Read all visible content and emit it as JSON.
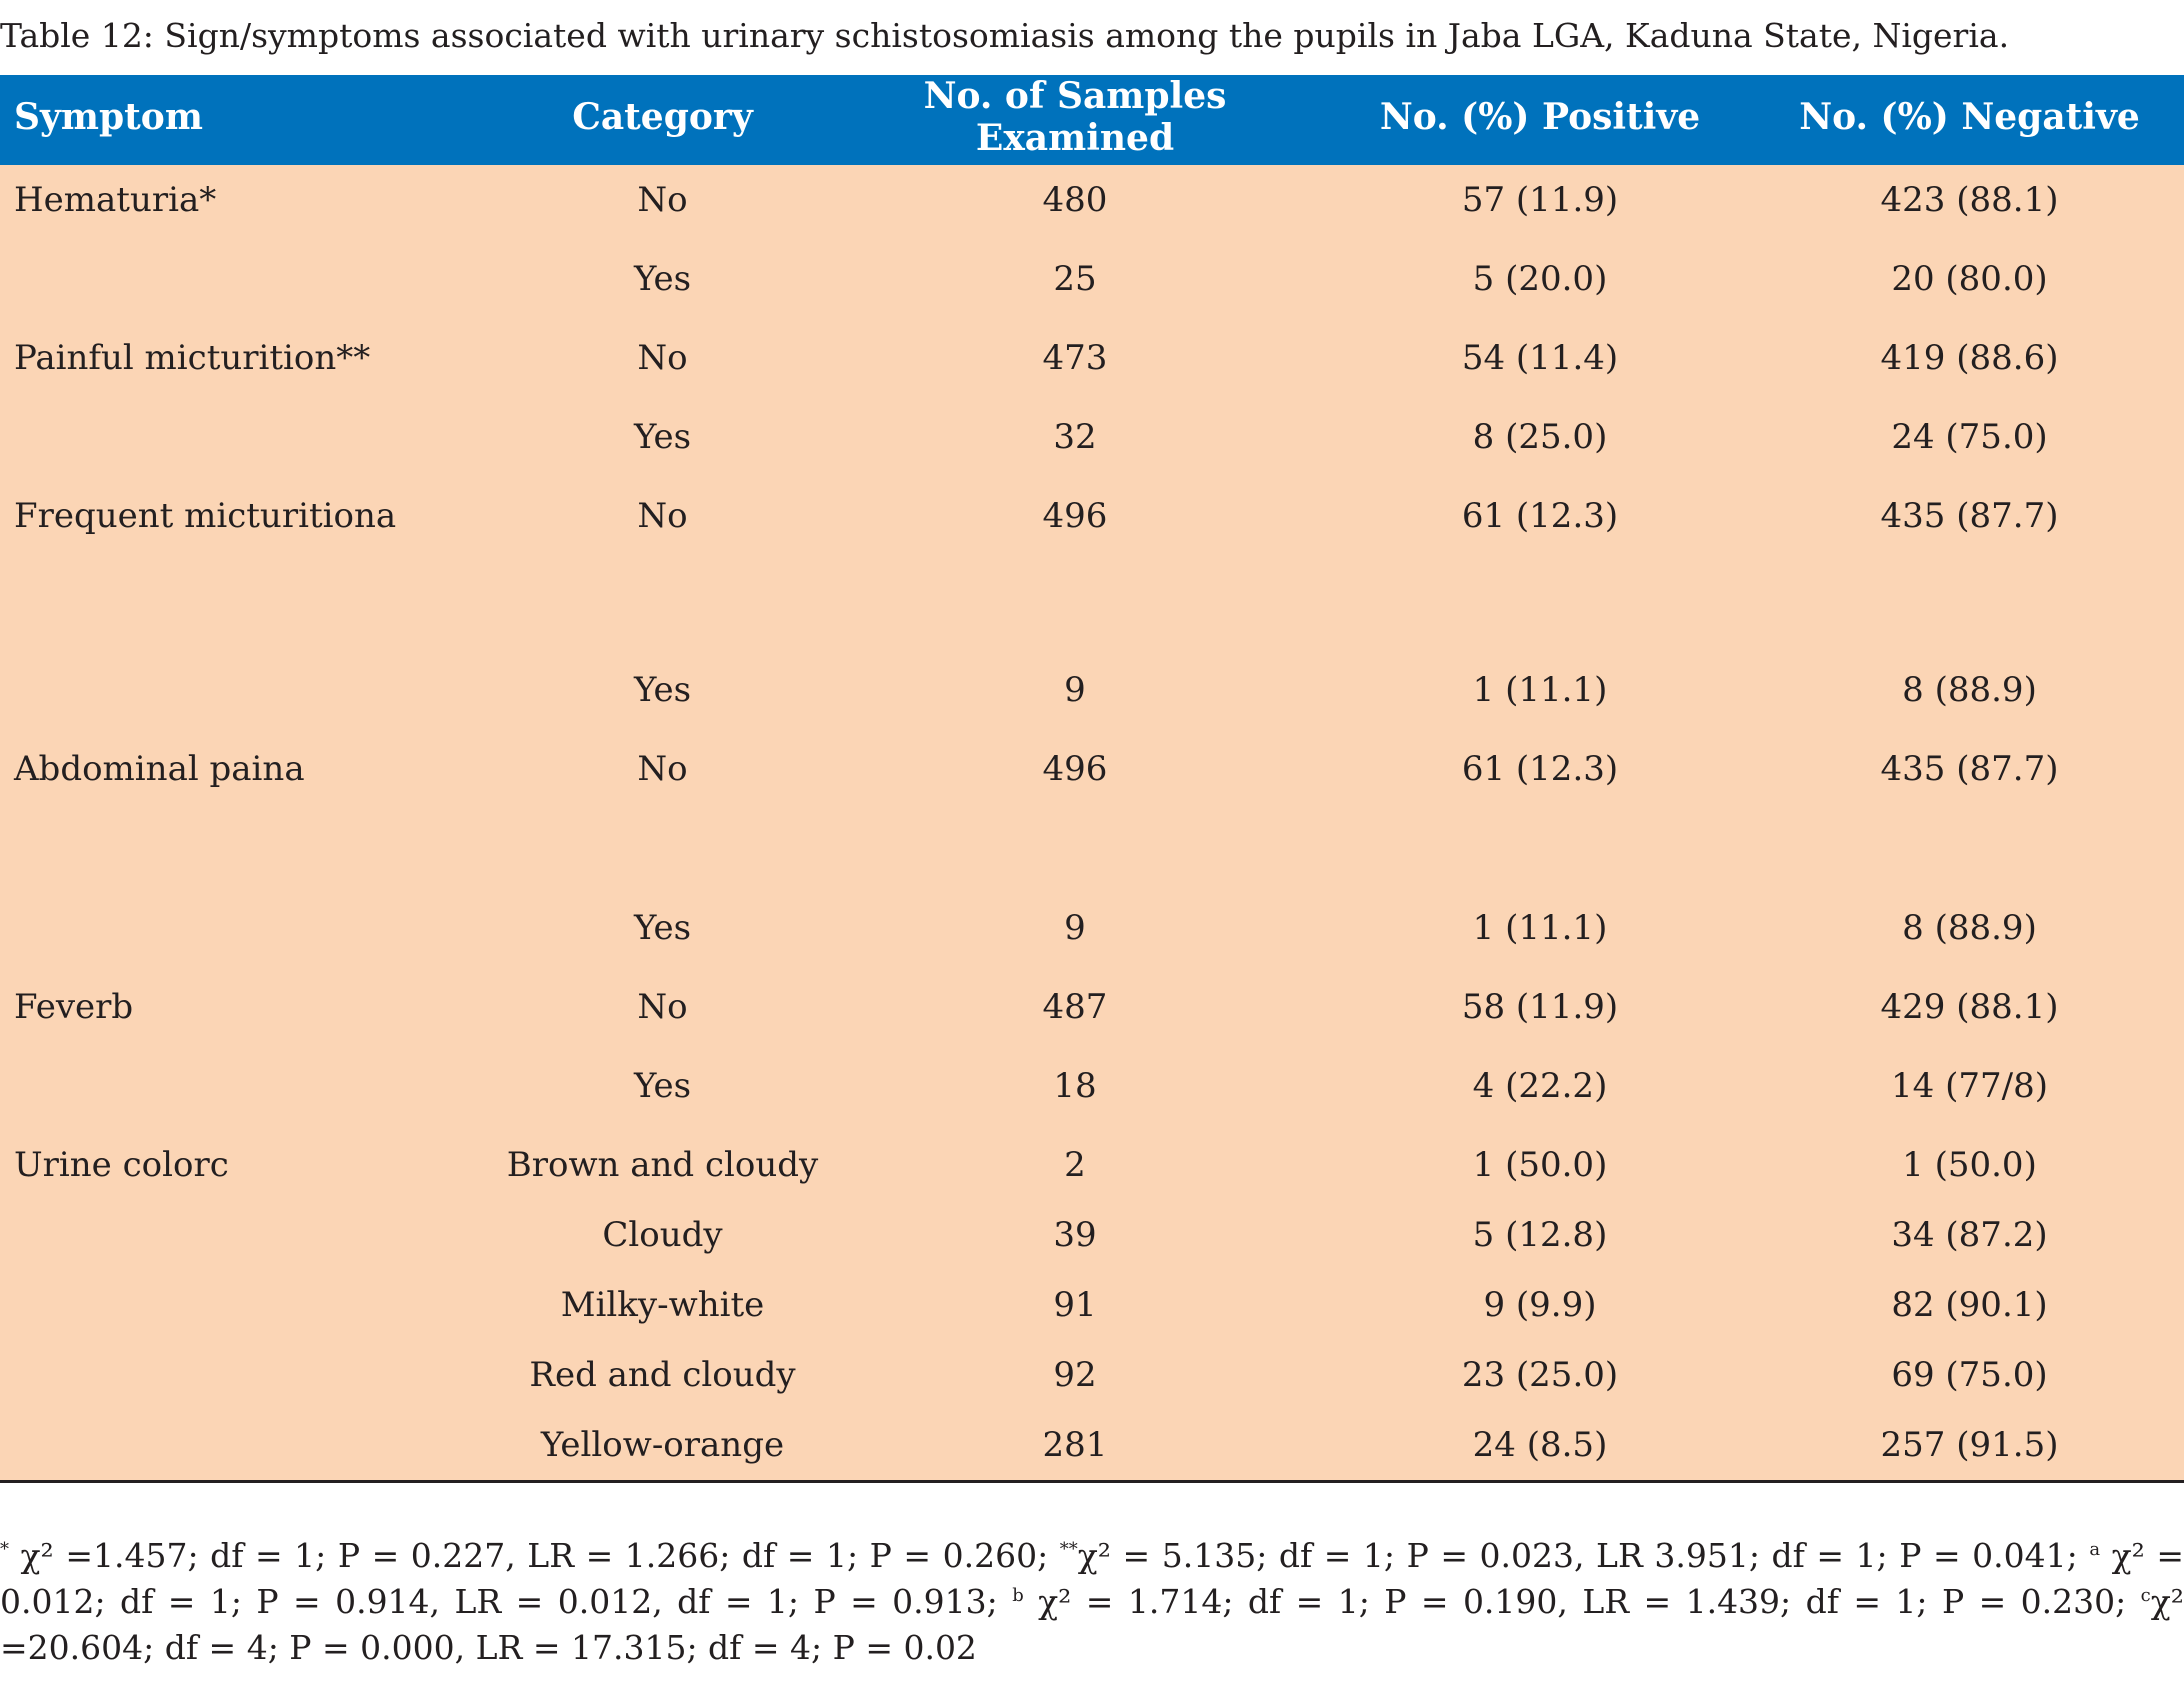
{
  "caption": "Table 12: Sign/symptoms associated with urinary schistosomiasis among the pupils in Jaba LGA, Kaduna State, Nigeria.",
  "headers": [
    "Symptom",
    "Category",
    "No. of Samples Examined",
    "No. (%) Positive",
    "No. (%) Negative"
  ],
  "rows": [
    [
      "Hematuria*",
      "No",
      "480",
      "57 (11.9)",
      "423 (88.1)"
    ],
    [
      "",
      "Yes",
      "25",
      "5 (20.0)",
      "20 (80.0)"
    ],
    [
      "Painful micturition**",
      "No",
      "473",
      "54 (11.4)",
      "419 (88.6)"
    ],
    [
      "",
      "Yes",
      "32",
      "8 (25.0)",
      "24 (75.0)"
    ],
    [
      "Frequent micturitiona",
      "No",
      "496",
      "61 (12.3)",
      "435 (87.7)"
    ],
    [
      "",
      "Yes",
      "9",
      "1 (11.1)",
      "8 (88.9)"
    ],
    [
      "Abdominal paina",
      "No",
      "496",
      "61 (12.3)",
      "435 (87.7)"
    ],
    [
      "",
      "Yes",
      "9",
      "1 (11.1)",
      "8 (88.9)"
    ],
    [
      "Feverb",
      "No",
      "487",
      "58 (11.9)",
      "429 (88.1)"
    ],
    [
      "",
      "Yes",
      "18",
      "4 (22.2)",
      "14 (77/8)"
    ],
    [
      "Urine colorc",
      "Brown and cloudy",
      "2",
      "1 (50.0)",
      "1 (50.0)"
    ],
    [
      "",
      "Cloudy",
      "39",
      "5 (12.8)",
      "34 (87.2)"
    ],
    [
      "",
      "Milky-white",
      "91",
      "9 (9.9)",
      "82 (90.1)"
    ],
    [
      "",
      "Red and cloudy",
      "92",
      "23 (25.0)",
      "69 (75.0)"
    ],
    [
      "",
      "Yellow-orange",
      "281",
      "24 (8.5)",
      "257 (91.5)"
    ]
  ],
  "footnote": {
    "m1": "*",
    "t1": " χ² =1.457; df = 1; P = 0.227, LR = 1.266; df = 1; P = 0.260; ",
    "m2": "**",
    "t2": "χ² = 5.135; df = 1; P = 0.023, LR 3.951; df = 1; P = 0.041; ",
    "m3": "a",
    "t3": " χ² = 0.012; df = 1; P = 0.914, LR = 0.012, df = 1; P = 0.913; ",
    "m4": "b",
    "t4": " χ² = 1.714; df = 1; P = 0.190, LR = 1.439; df = 1; P = 0.230; ",
    "m5": "c",
    "t5": "χ² =20.604; df = 4; P = 0.000, LR = 17.315; df = 4; P = 0.02"
  }
}
